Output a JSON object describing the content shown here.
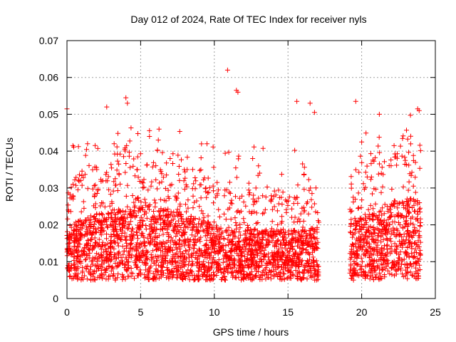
{
  "chart_data": {
    "type": "scatter",
    "title": "Day 012 of 2024, Rate Of TEC Index for receiver nyls",
    "xlabel": "GPS time / hours",
    "ylabel": "ROTI / TECUs",
    "xlim": [
      0,
      25
    ],
    "ylim": [
      0,
      0.07
    ],
    "xticks": [
      0,
      5,
      10,
      15,
      20,
      25
    ],
    "xtick_labels": [
      "0",
      "5",
      "10",
      "15",
      "20",
      "25"
    ],
    "yticks": [
      0,
      0.01,
      0.02,
      0.03,
      0.04,
      0.05,
      0.06,
      0.07
    ],
    "ytick_labels": [
      "0",
      "0.01",
      "0.02",
      "0.03",
      "0.04",
      "0.05",
      "0.06",
      "0.07"
    ],
    "grid": true,
    "marker": "+",
    "color": "#ff0000",
    "data_segments": [
      {
        "x_start": 0.0,
        "x_end": 17.1,
        "typical_range": [
          0.005,
          0.025
        ]
      },
      {
        "x_start": 19.2,
        "x_end": 24.0,
        "typical_range": [
          0.005,
          0.028
        ]
      }
    ],
    "gap": [
      17.1,
      19.2
    ],
    "notable_points": [
      {
        "x": 0.0,
        "y": 0.0515
      },
      {
        "x": 2.7,
        "y": 0.052
      },
      {
        "x": 4.0,
        "y": 0.0545
      },
      {
        "x": 4.1,
        "y": 0.053
      },
      {
        "x": 5.6,
        "y": 0.044
      },
      {
        "x": 6.2,
        "y": 0.043
      },
      {
        "x": 9.5,
        "y": 0.042
      },
      {
        "x": 10.9,
        "y": 0.062
      },
      {
        "x": 11.5,
        "y": 0.0565
      },
      {
        "x": 11.6,
        "y": 0.056
      },
      {
        "x": 15.6,
        "y": 0.0535
      },
      {
        "x": 16.5,
        "y": 0.053
      },
      {
        "x": 16.8,
        "y": 0.0505
      },
      {
        "x": 19.6,
        "y": 0.0535
      },
      {
        "x": 21.2,
        "y": 0.05
      },
      {
        "x": 23.8,
        "y": 0.0515
      },
      {
        "x": 23.9,
        "y": 0.051
      },
      {
        "x": 0.4,
        "y": 0.0415
      },
      {
        "x": 3.2,
        "y": 0.042
      },
      {
        "x": 7.0,
        "y": 0.038
      },
      {
        "x": 12.6,
        "y": 0.038
      },
      {
        "x": 13.0,
        "y": 0.036
      },
      {
        "x": 20.0,
        "y": 0.0425
      },
      {
        "x": 22.2,
        "y": 0.0415
      }
    ]
  }
}
